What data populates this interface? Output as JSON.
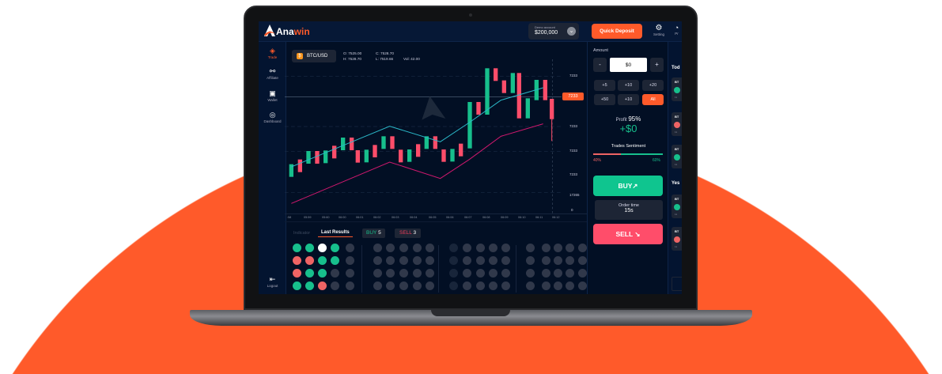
{
  "brand": {
    "name_a": "Ana",
    "name_b": "win",
    "accent": "#ff5a2a"
  },
  "header": {
    "account_label": "Demo account",
    "balance": "$200,000",
    "quick_deposit": "Quick Deposit",
    "setting": "Setting",
    "profile": "Pr"
  },
  "sidebar": {
    "items": [
      {
        "label": "Trade",
        "icon": "trade-icon"
      },
      {
        "label": "Affiliate",
        "icon": "share-icon"
      },
      {
        "label": "Wallet",
        "icon": "wallet-icon"
      },
      {
        "label": "Dashboard",
        "icon": "dashboard-icon"
      }
    ],
    "logout": "Logout"
  },
  "chart": {
    "pair": "BTC/USD",
    "open": "O: 7525.00",
    "close": "C: 7528.70",
    "high": "H: 7528.70",
    "low": "L: 7519.66",
    "vol": "Vol: 42.00",
    "y_labels": [
      "7233",
      "7233",
      "7233",
      "7233",
      "17265",
      "0"
    ],
    "current_price": "7233",
    "x_labels": [
      ":58",
      "05:59",
      "05:60",
      "06:00",
      "06:01",
      "06:02",
      "06:03",
      "06:04",
      "06:05",
      "06:06",
      "06:07",
      "06:08",
      "06:09",
      "06:10",
      "06:11",
      "06:12"
    ],
    "colors": {
      "up": "#17bf8c",
      "down": "#ff4d6a",
      "ma_fast": "#2bb8c8",
      "ma_slow": "#d0186e"
    }
  },
  "results": {
    "tab_indicator": "Indicator",
    "tab_last": "Last Results",
    "buy_label": "BUY",
    "buy_count": "5",
    "sell_label": "SELL",
    "sell_count": "3",
    "grid": [
      [
        "g",
        "g",
        "w",
        "g",
        "n"
      ],
      [
        "r",
        "r",
        "g",
        "g",
        "n"
      ],
      [
        "r",
        "g",
        "g",
        "n",
        "n"
      ],
      [
        "g",
        "g",
        "r",
        "n",
        "n"
      ]
    ]
  },
  "trade": {
    "amount_label": "Amount",
    "minus": "-",
    "amount_value": "$0",
    "plus": "+",
    "quick": [
      "+5",
      "+10",
      "+20",
      "+50",
      "+10",
      "All"
    ],
    "profit_label": "Profit",
    "profit_pct": "95%",
    "profit_value": "+$0",
    "sentiment_label": "Trades Sentiment",
    "sell_pct_label": "40%",
    "buy_pct_label": "60%",
    "sell_pct": 40,
    "buy_pct": 60,
    "buy": "BUY",
    "order_time_label": "Order time",
    "order_time": "15s",
    "sell": "SELL"
  },
  "history": {
    "today": "Tod",
    "yesterday": "Yes",
    "cards": [
      {
        "t": "BT",
        "dir": "up",
        "s": "11"
      },
      {
        "t": "BT",
        "dir": "down",
        "s": "11"
      },
      {
        "t": "BT",
        "dir": "up",
        "s": "11"
      },
      {
        "t": "BT",
        "dir": "up",
        "s": "11"
      },
      {
        "t": "BT",
        "dir": "down",
        "s": "11"
      }
    ]
  }
}
